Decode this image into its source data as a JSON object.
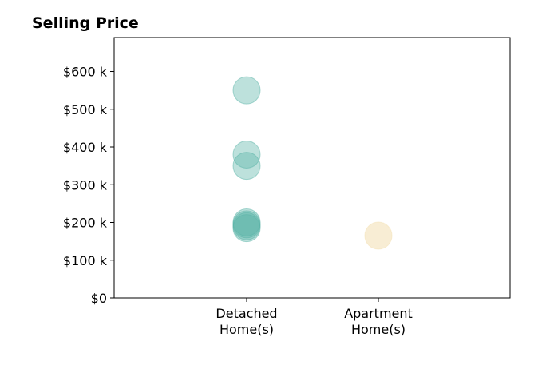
{
  "chart_data": {
    "type": "scatter",
    "title": "Selling Price",
    "xlabel": "",
    "ylabel": "",
    "categories": [
      [
        "Detached",
        "Home(s)"
      ],
      [
        "Apartment",
        "Home(s)"
      ]
    ],
    "ylim": [
      0,
      690000
    ],
    "y_ticks": [
      0,
      100000,
      200000,
      300000,
      400000,
      500000,
      600000
    ],
    "y_tick_labels": [
      "$0",
      "$100 k",
      "$200 k",
      "$300 k",
      "$400 k",
      "$500 k",
      "$600 k"
    ],
    "grid": false,
    "series": [
      {
        "category_index": 0,
        "color": "#5ab4a8",
        "values": [
          550000,
          380000,
          350000,
          200000,
          195000,
          190000,
          185000
        ]
      },
      {
        "category_index": 1,
        "color": "#f3dfb0",
        "values": [
          165000
        ]
      }
    ]
  }
}
